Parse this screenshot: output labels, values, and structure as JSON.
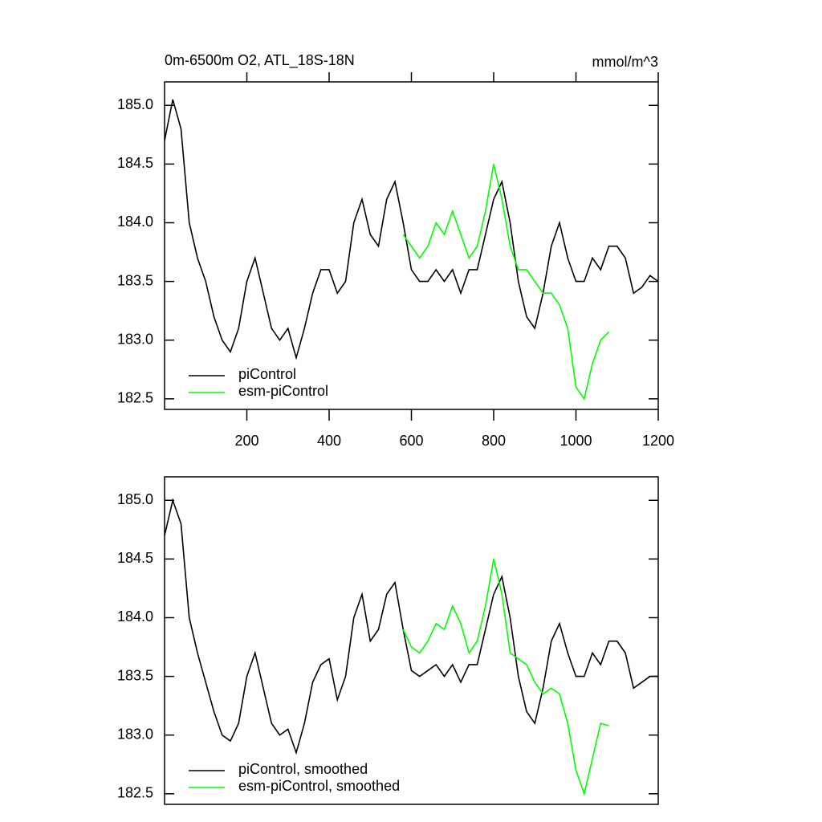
{
  "chart_data": [
    {
      "type": "line",
      "title": "0m-6500m O2, ATL_18S-18N",
      "units": "mmol/m^3",
      "xlim": [
        0,
        1200
      ],
      "xticks": [
        200,
        400,
        600,
        800,
        1000,
        1200
      ],
      "ylim": [
        182.41,
        185.2
      ],
      "yticks": [
        182.5,
        {
          "value": 183,
          "label": "183.0"
        },
        183.5,
        {
          "value": 184,
          "label": "184.0"
        },
        184.5,
        {
          "value": 185,
          "label": "185.0"
        }
      ],
      "series": [
        {
          "name": "piControl",
          "color": "#000000",
          "x": [
            0,
            20,
            40,
            60,
            80,
            100,
            120,
            140,
            160,
            180,
            200,
            220,
            240,
            260,
            280,
            300,
            320,
            340,
            360,
            380,
            400,
            420,
            440,
            460,
            480,
            500,
            520,
            540,
            560,
            580,
            600,
            620,
            640,
            660,
            680,
            700,
            720,
            740,
            760,
            780,
            800,
            820,
            840,
            860,
            880,
            900,
            920,
            940,
            960,
            980,
            1000,
            1020,
            1040,
            1060,
            1080,
            1100,
            1120,
            1140,
            1160,
            1180,
            1200
          ],
          "values": [
            184.7,
            185.05,
            184.8,
            184.0,
            183.7,
            183.5,
            183.2,
            183.0,
            182.9,
            183.1,
            183.5,
            183.7,
            183.4,
            183.1,
            183.0,
            183.1,
            182.85,
            183.1,
            183.4,
            183.6,
            183.6,
            183.4,
            183.5,
            184.0,
            184.2,
            183.9,
            183.8,
            184.2,
            184.35,
            184.0,
            183.6,
            183.5,
            183.5,
            183.6,
            183.5,
            183.6,
            183.4,
            183.6,
            183.6,
            183.9,
            184.2,
            184.35,
            184.0,
            183.5,
            183.2,
            183.1,
            183.4,
            183.8,
            184.0,
            183.7,
            183.5,
            183.5,
            183.7,
            183.6,
            183.8,
            183.8,
            183.7,
            183.4,
            183.45,
            183.55,
            183.5
          ]
        },
        {
          "name": "esm-piControl",
          "color": "#00ff00",
          "x": [
            580,
            600,
            620,
            640,
            660,
            680,
            700,
            720,
            740,
            760,
            780,
            800,
            820,
            840,
            860,
            880,
            900,
            920,
            940,
            960,
            980,
            1000,
            1020,
            1040,
            1060,
            1080
          ],
          "values": [
            183.9,
            183.8,
            183.7,
            183.8,
            184.0,
            183.9,
            184.1,
            183.9,
            183.7,
            183.8,
            184.1,
            184.5,
            184.2,
            183.8,
            183.6,
            183.6,
            183.5,
            183.4,
            183.4,
            183.3,
            183.1,
            182.6,
            182.5,
            182.8,
            183.0,
            183.07
          ]
        }
      ]
    },
    {
      "type": "line",
      "xlim": [
        0,
        1200
      ],
      "ylim": [
        182.41,
        185.2
      ],
      "yticks": [
        182.5,
        {
          "value": 183,
          "label": "183.0"
        },
        183.5,
        {
          "value": 184,
          "label": "184.0"
        },
        184.5,
        {
          "value": 185,
          "label": "185.0"
        }
      ],
      "series": [
        {
          "name": "piControl, smoothed",
          "color": "#000000",
          "x": [
            0,
            20,
            40,
            60,
            80,
            100,
            120,
            140,
            160,
            180,
            200,
            220,
            240,
            260,
            280,
            300,
            320,
            340,
            360,
            380,
            400,
            420,
            440,
            460,
            480,
            500,
            520,
            540,
            560,
            580,
            600,
            620,
            640,
            660,
            680,
            700,
            720,
            740,
            760,
            780,
            800,
            820,
            840,
            860,
            880,
            900,
            920,
            940,
            960,
            980,
            1000,
            1020,
            1040,
            1060,
            1080,
            1100,
            1120,
            1140,
            1160,
            1180,
            1200
          ],
          "values": [
            184.7,
            185.0,
            184.8,
            184.0,
            183.7,
            183.45,
            183.2,
            183.0,
            182.95,
            183.1,
            183.5,
            183.7,
            183.4,
            183.1,
            183.0,
            183.05,
            182.85,
            183.1,
            183.45,
            183.6,
            183.65,
            183.3,
            183.5,
            184.0,
            184.2,
            183.8,
            183.9,
            184.2,
            184.3,
            183.9,
            183.55,
            183.5,
            183.55,
            183.6,
            183.5,
            183.6,
            183.45,
            183.6,
            183.6,
            183.9,
            184.2,
            184.35,
            184.0,
            183.5,
            183.2,
            183.1,
            183.4,
            183.8,
            183.95,
            183.7,
            183.5,
            183.5,
            183.7,
            183.6,
            183.8,
            183.8,
            183.7,
            183.4,
            183.45,
            183.5,
            183.5
          ]
        },
        {
          "name": "esm-piControl, smoothed",
          "color": "#00ff00",
          "x": [
            580,
            600,
            620,
            640,
            660,
            680,
            700,
            720,
            740,
            760,
            780,
            800,
            820,
            840,
            860,
            880,
            900,
            920,
            940,
            960,
            980,
            1000,
            1020,
            1040,
            1060,
            1080
          ],
          "values": [
            183.9,
            183.75,
            183.7,
            183.8,
            183.95,
            183.9,
            184.1,
            183.95,
            183.7,
            183.8,
            184.1,
            184.5,
            184.2,
            183.7,
            183.65,
            183.6,
            183.45,
            183.35,
            183.4,
            183.35,
            183.1,
            182.7,
            182.5,
            182.8,
            183.1,
            183.08
          ]
        }
      ]
    }
  ]
}
